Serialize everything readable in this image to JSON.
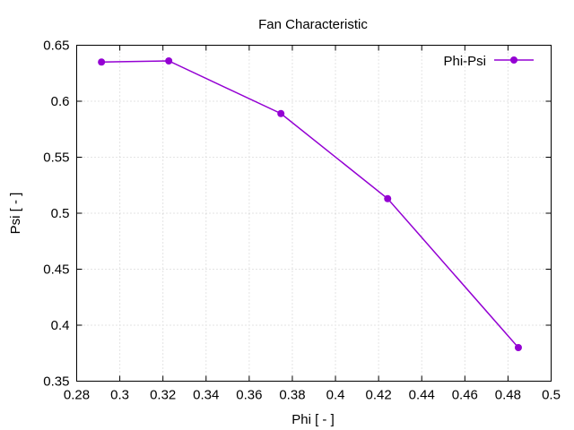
{
  "chart_data": {
    "type": "line",
    "title": "Fan Characteristic",
    "xlabel": "Phi [ - ]",
    "ylabel": "Psi [ - ]",
    "xlim": [
      0.28,
      0.5
    ],
    "ylim": [
      0.35,
      0.65
    ],
    "xticks": [
      "0.28",
      "0.3",
      "0.32",
      "0.34",
      "0.36",
      "0.38",
      "0.4",
      "0.42",
      "0.44",
      "0.46",
      "0.48",
      "0.5"
    ],
    "yticks": [
      "0.35",
      "0.4",
      "0.45",
      "0.5",
      "0.55",
      "0.6",
      "0.65"
    ],
    "grid": true,
    "legend_position": "top-right",
    "series": [
      {
        "name": "Phi-Psi",
        "color": "#9400d3",
        "marker": "circle",
        "x": [
          0.2915,
          0.3227,
          0.3747,
          0.4242,
          0.4848
        ],
        "y": [
          0.635,
          0.636,
          0.589,
          0.513,
          0.38
        ]
      }
    ]
  }
}
